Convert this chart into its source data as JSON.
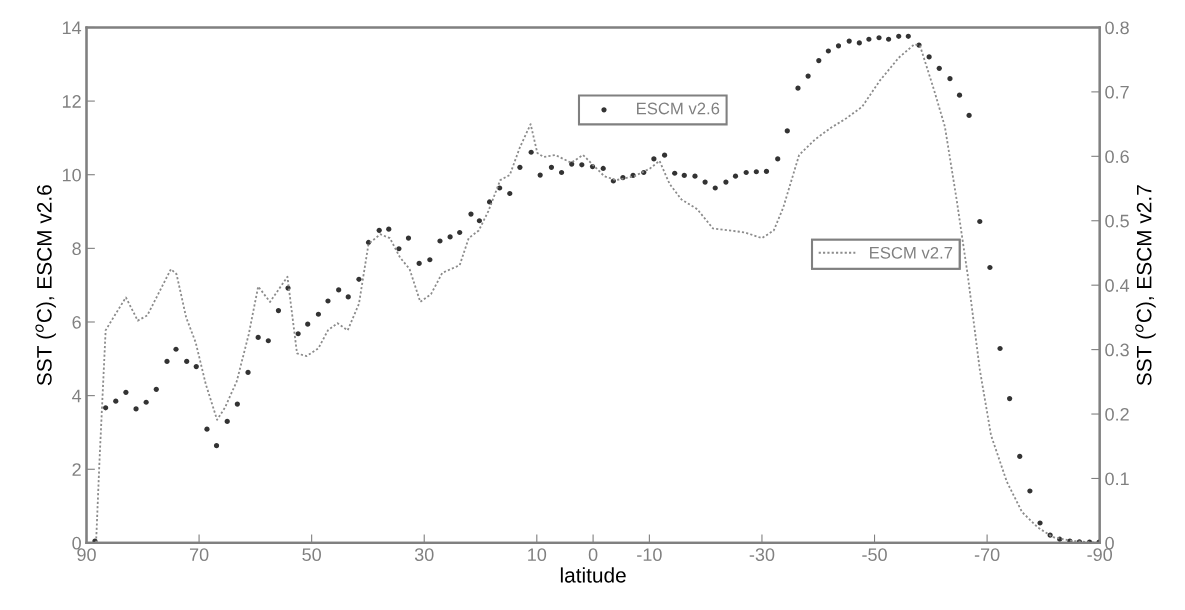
{
  "chart_data": {
    "type": "scatter",
    "xlabel": "latitude",
    "ylabel": "SST ($^{o}$C), ESCM v2.6",
    "y2label": "SST ($^{o}$C), ESCM v2.7",
    "xlim": [
      90,
      -90
    ],
    "xticks": [
      90,
      70,
      50,
      30,
      10,
      0,
      -10,
      -30,
      -50,
      -70,
      -90
    ],
    "ylim": [
      0,
      14
    ],
    "yticks": [
      0,
      2,
      4,
      6,
      8,
      10,
      12,
      14
    ],
    "y2lim": [
      0,
      0.8
    ],
    "y2ticks": [
      0,
      0.1,
      0.2,
      0.3,
      0.4,
      0.5,
      0.6,
      0.7,
      0.8
    ],
    "grid": false,
    "legend": "right",
    "series": [
      {
        "name": "ESCM v2.6",
        "marker": "circle",
        "color": "#333333",
        "x": [
          88.5,
          86.6,
          84.8,
          83.0,
          81.2,
          79.4,
          77.6,
          75.7,
          74.1,
          72.2,
          70.5,
          68.6,
          66.9,
          65.0,
          63.2,
          61.3,
          59.5,
          57.7,
          55.9,
          54.2,
          52.4,
          50.7,
          48.8,
          47.1,
          45.2,
          43.5,
          41.6,
          39.9,
          38.0,
          36.3,
          34.5,
          32.8,
          30.9,
          29.0,
          27.2,
          25.4,
          23.7,
          21.7,
          20.2,
          18.4,
          16.6,
          14.8,
          13.0,
          11.0,
          9.4,
          7.4,
          5.6,
          3.8,
          2.0,
          0.1,
          -1.8,
          -3.6,
          -5.3,
          -7.1,
          -9.0,
          -10.8,
          -12.7,
          -14.5,
          -16.2,
          -18.1,
          -19.9,
          -21.7,
          -23.6,
          -25.3,
          -27.2,
          -29.0,
          -30.8,
          -32.8,
          -34.5,
          -36.4,
          -38.2,
          -40.1,
          -41.8,
          -43.6,
          -45.5,
          -47.3,
          -49.0,
          -50.8,
          -52.5,
          -54.3,
          -56.0,
          -57.9,
          -59.7,
          -61.5,
          -63.4,
          -65.1,
          -66.8,
          -68.7,
          -70.5,
          -72.3,
          -74.0,
          -75.8,
          -77.6,
          -79.4,
          -81.2,
          -82.9,
          -84.7,
          -86.4,
          -88.2,
          -89.9
        ],
        "values": [
          0.05,
          3.67,
          3.85,
          4.09,
          3.64,
          3.82,
          4.17,
          4.93,
          5.26,
          4.93,
          4.79,
          3.09,
          2.64,
          3.3,
          3.77,
          4.63,
          5.58,
          5.49,
          6.31,
          6.92,
          5.68,
          5.94,
          6.21,
          6.57,
          6.87,
          6.68,
          7.16,
          8.16,
          8.49,
          8.52,
          7.99,
          8.28,
          7.59,
          7.69,
          8.2,
          8.31,
          8.43,
          8.93,
          8.75,
          9.26,
          9.64,
          9.49,
          10.2,
          10.61,
          9.99,
          10.2,
          10.06,
          10.29,
          10.27,
          10.22,
          10.17,
          9.83,
          9.92,
          9.98,
          10.06,
          10.43,
          10.53,
          10.04,
          9.98,
          9.96,
          9.8,
          9.64,
          9.8,
          9.96,
          10.06,
          10.08,
          10.09,
          10.43,
          11.19,
          12.35,
          12.68,
          13.1,
          13.36,
          13.5,
          13.63,
          13.58,
          13.68,
          13.72,
          13.68,
          13.76,
          13.76,
          13.52,
          13.2,
          12.89,
          12.61,
          12.16,
          11.61,
          8.73,
          7.48,
          5.28,
          3.92,
          2.35,
          1.41,
          0.54,
          0.21,
          0.1,
          0.05,
          0.03,
          0.02,
          0.02
        ]
      },
      {
        "name": "ESCM v2.7",
        "type": "line",
        "axis": "y2",
        "marker": "none",
        "line_style": "dotted",
        "color": "#8c8c8c",
        "x": [
          88.3,
          87.7,
          86.6,
          85.0,
          83.0,
          80.9,
          79.2,
          77.8,
          75.0,
          74.0,
          72.3,
          70.6,
          68.8,
          66.8,
          65.4,
          63.3,
          61.2,
          59.5,
          57.4,
          54.3,
          52.6,
          50.9,
          48.8,
          47.1,
          45.4,
          43.6,
          41.6,
          39.9,
          37.8,
          36.1,
          34.3,
          32.6,
          30.7,
          28.8,
          26.8,
          23.7,
          22.1,
          20.3,
          18.6,
          16.5,
          14.8,
          13.0,
          11.1,
          9.9,
          8.8,
          6.7,
          3.9,
          1.8,
          -0.3,
          -2.0,
          -4.1,
          -7.3,
          -10.1,
          -11.8,
          -13.6,
          -15.7,
          -18.5,
          -21.3,
          -24.1,
          -26.9,
          -30.0,
          -32.1,
          -33.8,
          -36.6,
          -39.4,
          -42.2,
          -45.0,
          -47.8,
          -50.9,
          -54.3,
          -57.1,
          -58.1,
          -60.5,
          -62.5,
          -64.6,
          -66.6,
          -68.7,
          -70.7,
          -73.5,
          -76.2,
          -79.0,
          -81.7,
          -85.1,
          -89.9
        ],
        "values": [
          0,
          0.126,
          0.33,
          0.353,
          0.381,
          0.345,
          0.353,
          0.377,
          0.425,
          0.417,
          0.35,
          0.311,
          0.246,
          0.191,
          0.21,
          0.251,
          0.323,
          0.398,
          0.374,
          0.413,
          0.294,
          0.29,
          0.302,
          0.33,
          0.341,
          0.33,
          0.371,
          0.464,
          0.479,
          0.473,
          0.443,
          0.425,
          0.374,
          0.386,
          0.419,
          0.431,
          0.473,
          0.485,
          0.515,
          0.563,
          0.571,
          0.614,
          0.65,
          0.605,
          0.599,
          0.602,
          0.59,
          0.602,
          0.584,
          0.569,
          0.563,
          0.569,
          0.581,
          0.593,
          0.557,
          0.533,
          0.518,
          0.488,
          0.485,
          0.482,
          0.473,
          0.485,
          0.521,
          0.602,
          0.626,
          0.644,
          0.659,
          0.677,
          0.717,
          0.753,
          0.774,
          0.771,
          0.705,
          0.646,
          0.532,
          0.413,
          0.269,
          0.167,
          0.095,
          0.048,
          0.024,
          0.009,
          0.003,
          0
        ]
      }
    ]
  }
}
